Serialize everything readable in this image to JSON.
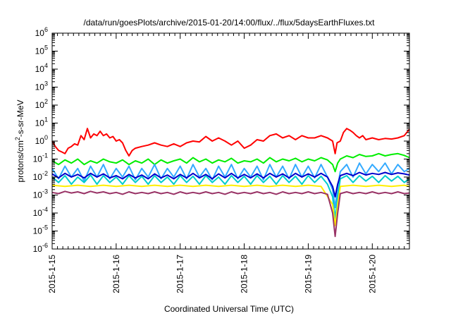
{
  "chart_data": {
    "type": "line",
    "title": "/data/run/goesPlots/archive/2015-01-20/14:00/flux/../flux/5daysEarthFluxes.txt",
    "xlabel": "Coordinated Universal Time (UTC)",
    "ylabel": "protons/cm²-s-sr-MeV",
    "ylabel_parts": [
      "protons/cm",
      "2",
      "-s-sr-MeV"
    ],
    "yscale": "log",
    "ylim": [
      1e-06,
      1000000.0
    ],
    "xlim": [
      0,
      5.58
    ],
    "x_ticks": [
      {
        "x": 0,
        "label": "2015-1-15"
      },
      {
        "x": 1,
        "label": "2015-1-16"
      },
      {
        "x": 2,
        "label": "2015-1-17"
      },
      {
        "x": 3,
        "label": "2015-1-18"
      },
      {
        "x": 4,
        "label": "2015-1-19"
      },
      {
        "x": 5,
        "label": "2015-1-20"
      }
    ],
    "y_ticks": [
      {
        "exp": -6,
        "base": "10",
        "sup": "-6"
      },
      {
        "exp": -5,
        "base": "10",
        "sup": "-5"
      },
      {
        "exp": -4,
        "base": "10",
        "sup": "-4"
      },
      {
        "exp": -3,
        "base": "10",
        "sup": "-3"
      },
      {
        "exp": -2,
        "base": "10",
        "sup": "-2"
      },
      {
        "exp": -1,
        "base": "10",
        "sup": "-1"
      },
      {
        "exp": 0,
        "base": "10",
        "sup": "0"
      },
      {
        "exp": 1,
        "base": "10",
        "sup": "1"
      },
      {
        "exp": 2,
        "base": "10",
        "sup": "2"
      },
      {
        "exp": 3,
        "base": "10",
        "sup": "3"
      },
      {
        "exp": 4,
        "base": "10",
        "sup": "4"
      },
      {
        "exp": 5,
        "base": "10",
        "sup": "5"
      },
      {
        "exp": 6,
        "base": "10",
        "sup": "6"
      }
    ],
    "grid": false,
    "legend": "none",
    "series": [
      {
        "color": "#ff0000",
        "x": [
          0,
          0.05,
          0.1,
          0.15,
          0.2,
          0.25,
          0.3,
          0.35,
          0.4,
          0.45,
          0.5,
          0.55,
          0.6,
          0.65,
          0.7,
          0.75,
          0.8,
          0.85,
          0.9,
          0.95,
          1.0,
          1.05,
          1.1,
          1.15,
          1.2,
          1.25,
          1.3,
          1.4,
          1.5,
          1.6,
          1.7,
          1.8,
          1.9,
          2.0,
          2.1,
          2.2,
          2.3,
          2.4,
          2.5,
          2.6,
          2.7,
          2.8,
          2.9,
          3.0,
          3.1,
          3.2,
          3.3,
          3.4,
          3.5,
          3.6,
          3.7,
          3.8,
          3.9,
          4.0,
          4.1,
          4.2,
          4.3,
          4.38,
          4.42,
          4.45,
          4.5,
          4.55,
          4.6,
          4.65,
          4.7,
          4.75,
          4.8,
          4.85,
          4.9,
          5.0,
          5.1,
          5.2,
          5.3,
          5.4,
          5.5,
          5.58
        ],
        "y": [
          1.0,
          0.5,
          0.3,
          0.25,
          0.2,
          0.4,
          0.5,
          0.7,
          0.6,
          2.0,
          1.2,
          5.0,
          1.5,
          2.5,
          2.0,
          3.5,
          2.0,
          2.5,
          1.5,
          1.8,
          1.0,
          1.2,
          0.8,
          0.3,
          0.15,
          0.3,
          0.4,
          0.5,
          0.6,
          0.8,
          0.6,
          0.5,
          0.7,
          0.5,
          0.8,
          1.0,
          0.9,
          1.8,
          1.0,
          1.5,
          1.0,
          0.6,
          1.0,
          0.4,
          0.6,
          1.2,
          1.0,
          2.0,
          2.5,
          1.5,
          2.0,
          1.2,
          2.0,
          1.5,
          1.5,
          2.0,
          1.5,
          1.0,
          0.2,
          0.8,
          1.0,
          3.0,
          5.0,
          4.0,
          3.0,
          2.0,
          1.5,
          2.0,
          1.2,
          1.5,
          1.2,
          1.4,
          1.3,
          1.5,
          2.0,
          4.5
        ]
      },
      {
        "color": "#00ee00",
        "x": [
          0,
          0.1,
          0.2,
          0.3,
          0.4,
          0.5,
          0.6,
          0.7,
          0.8,
          0.9,
          1.0,
          1.1,
          1.2,
          1.3,
          1.4,
          1.5,
          1.6,
          1.7,
          1.8,
          1.9,
          2.0,
          2.1,
          2.2,
          2.3,
          2.4,
          2.5,
          2.6,
          2.7,
          2.8,
          2.9,
          3.0,
          3.1,
          3.2,
          3.3,
          3.4,
          3.5,
          3.6,
          3.7,
          3.8,
          3.9,
          4.0,
          4.1,
          4.2,
          4.3,
          4.38,
          4.42,
          4.46,
          4.5,
          4.6,
          4.7,
          4.8,
          4.9,
          5.0,
          5.1,
          5.2,
          5.3,
          5.4,
          5.5,
          5.58
        ],
        "y": [
          0.08,
          0.05,
          0.09,
          0.06,
          0.1,
          0.05,
          0.08,
          0.06,
          0.1,
          0.07,
          0.06,
          0.09,
          0.05,
          0.08,
          0.06,
          0.1,
          0.05,
          0.09,
          0.06,
          0.08,
          0.1,
          0.06,
          0.12,
          0.07,
          0.1,
          0.06,
          0.09,
          0.07,
          0.11,
          0.06,
          0.08,
          0.07,
          0.1,
          0.06,
          0.12,
          0.07,
          0.1,
          0.08,
          0.11,
          0.07,
          0.1,
          0.08,
          0.12,
          0.09,
          0.05,
          0.02,
          0.06,
          0.1,
          0.15,
          0.12,
          0.18,
          0.14,
          0.15,
          0.2,
          0.15,
          0.18,
          0.2,
          0.16,
          0.12
        ]
      },
      {
        "color": "#33aaff",
        "x": [
          0,
          0.1,
          0.2,
          0.3,
          0.4,
          0.5,
          0.6,
          0.7,
          0.8,
          0.9,
          1.0,
          1.1,
          1.2,
          1.3,
          1.4,
          1.5,
          1.6,
          1.7,
          1.8,
          1.9,
          2.0,
          2.1,
          2.2,
          2.3,
          2.4,
          2.5,
          2.6,
          2.7,
          2.8,
          2.9,
          3.0,
          3.1,
          3.2,
          3.3,
          3.4,
          3.5,
          3.6,
          3.7,
          3.8,
          3.9,
          4.0,
          4.1,
          4.2,
          4.3,
          4.38,
          4.42,
          4.46,
          4.5,
          4.6,
          4.7,
          4.8,
          4.9,
          5.0,
          5.1,
          5.2,
          5.3,
          5.4,
          5.5,
          5.58
        ],
        "y": [
          0.03,
          0.008,
          0.04,
          0.01,
          0.03,
          0.006,
          0.04,
          0.01,
          0.05,
          0.008,
          0.03,
          0.01,
          0.04,
          0.007,
          0.03,
          0.01,
          0.05,
          0.008,
          0.03,
          0.01,
          0.04,
          0.008,
          0.05,
          0.01,
          0.03,
          0.007,
          0.04,
          0.01,
          0.05,
          0.008,
          0.03,
          0.01,
          0.04,
          0.007,
          0.05,
          0.01,
          0.04,
          0.008,
          0.05,
          0.01,
          0.04,
          0.009,
          0.05,
          0.01,
          0.002,
          0.0002,
          0.003,
          0.02,
          0.05,
          0.01,
          0.06,
          0.015,
          0.05,
          0.02,
          0.06,
          0.015,
          0.05,
          0.02,
          0.03
        ]
      },
      {
        "color": "#00cccc",
        "x": [
          0,
          0.1,
          0.2,
          0.3,
          0.4,
          0.5,
          0.6,
          0.7,
          0.8,
          0.9,
          1.0,
          1.1,
          1.2,
          1.3,
          1.4,
          1.5,
          1.6,
          1.7,
          1.8,
          1.9,
          2.0,
          2.1,
          2.2,
          2.3,
          2.4,
          2.5,
          2.6,
          2.7,
          2.8,
          2.9,
          3.0,
          3.1,
          3.2,
          3.3,
          3.4,
          3.5,
          3.6,
          3.7,
          3.8,
          3.9,
          4.0,
          4.1,
          4.2,
          4.3,
          4.38,
          4.42,
          4.46,
          4.5,
          4.6,
          4.7,
          4.8,
          4.9,
          5.0,
          5.1,
          5.2,
          5.3,
          5.4,
          5.5,
          5.58
        ],
        "y": [
          0.01,
          0.005,
          0.012,
          0.004,
          0.01,
          0.005,
          0.013,
          0.004,
          0.012,
          0.005,
          0.01,
          0.004,
          0.012,
          0.005,
          0.011,
          0.004,
          0.012,
          0.005,
          0.01,
          0.004,
          0.012,
          0.005,
          0.011,
          0.004,
          0.012,
          0.005,
          0.01,
          0.004,
          0.012,
          0.005,
          0.011,
          0.004,
          0.012,
          0.005,
          0.011,
          0.004,
          0.012,
          0.005,
          0.011,
          0.004,
          0.012,
          0.005,
          0.011,
          0.004,
          0.0008,
          5e-05,
          0.0008,
          0.008,
          0.012,
          0.005,
          0.012,
          0.006,
          0.011,
          0.005,
          0.012,
          0.006,
          0.011,
          0.005,
          0.008
        ]
      },
      {
        "color": "#0000cc",
        "x": [
          0,
          0.1,
          0.2,
          0.3,
          0.4,
          0.5,
          0.6,
          0.7,
          0.8,
          0.9,
          1.0,
          1.1,
          1.2,
          1.3,
          1.4,
          1.5,
          1.6,
          1.7,
          1.8,
          1.9,
          2.0,
          2.1,
          2.2,
          2.3,
          2.4,
          2.5,
          2.6,
          2.7,
          2.8,
          2.9,
          3.0,
          3.1,
          3.2,
          3.3,
          3.4,
          3.5,
          3.6,
          3.7,
          3.8,
          3.9,
          4.0,
          4.1,
          4.2,
          4.3,
          4.38,
          4.42,
          4.46,
          4.5,
          4.6,
          4.7,
          4.8,
          4.9,
          5.0,
          5.1,
          5.2,
          5.3,
          5.4,
          5.5,
          5.58
        ],
        "y": [
          0.015,
          0.009,
          0.016,
          0.01,
          0.014,
          0.009,
          0.016,
          0.01,
          0.015,
          0.009,
          0.012,
          0.008,
          0.014,
          0.009,
          0.013,
          0.008,
          0.015,
          0.009,
          0.013,
          0.008,
          0.014,
          0.009,
          0.016,
          0.009,
          0.014,
          0.008,
          0.015,
          0.009,
          0.016,
          0.009,
          0.014,
          0.009,
          0.015,
          0.009,
          0.016,
          0.01,
          0.015,
          0.009,
          0.016,
          0.01,
          0.015,
          0.01,
          0.016,
          0.01,
          0.003,
          0.0008,
          0.004,
          0.012,
          0.016,
          0.012,
          0.018,
          0.013,
          0.016,
          0.014,
          0.018,
          0.014,
          0.017,
          0.015,
          0.013
        ]
      },
      {
        "color": "#ffee00",
        "x": [
          0,
          0.2,
          0.4,
          0.6,
          0.8,
          1.0,
          1.2,
          1.4,
          1.6,
          1.8,
          2.0,
          2.2,
          2.4,
          2.6,
          2.8,
          3.0,
          3.2,
          3.4,
          3.6,
          3.8,
          4.0,
          4.2,
          4.38,
          4.42,
          4.46,
          4.5,
          4.7,
          4.9,
          5.1,
          5.3,
          5.5,
          5.58
        ],
        "y": [
          0.0035,
          0.003,
          0.0035,
          0.003,
          0.0035,
          0.003,
          0.0035,
          0.003,
          0.0035,
          0.003,
          0.0035,
          0.003,
          0.0035,
          0.003,
          0.0035,
          0.003,
          0.0035,
          0.003,
          0.0035,
          0.003,
          0.0035,
          0.003,
          0.0003,
          2e-05,
          0.0003,
          0.003,
          0.0035,
          0.003,
          0.0035,
          0.003,
          0.0035,
          0.003
        ]
      },
      {
        "color": "#993366",
        "x": [
          0,
          0.1,
          0.2,
          0.3,
          0.4,
          0.5,
          0.6,
          0.7,
          0.8,
          0.9,
          1.0,
          1.1,
          1.2,
          1.3,
          1.4,
          1.5,
          1.6,
          1.7,
          1.8,
          1.9,
          2.0,
          2.1,
          2.2,
          2.3,
          2.4,
          2.5,
          2.6,
          2.7,
          2.8,
          2.9,
          3.0,
          3.1,
          3.2,
          3.3,
          3.4,
          3.5,
          3.6,
          3.7,
          3.8,
          3.9,
          4.0,
          4.1,
          4.2,
          4.3,
          4.38,
          4.42,
          4.46,
          4.5,
          4.6,
          4.7,
          4.8,
          4.9,
          5.0,
          5.1,
          5.2,
          5.3,
          5.4,
          5.5,
          5.58
        ],
        "y": [
          0.0014,
          0.0012,
          0.0016,
          0.0013,
          0.0015,
          0.0012,
          0.0016,
          0.0013,
          0.0015,
          0.0012,
          0.0014,
          0.0011,
          0.0015,
          0.0012,
          0.0014,
          0.0012,
          0.0015,
          0.0012,
          0.0014,
          0.0011,
          0.0015,
          0.0012,
          0.0014,
          0.0012,
          0.0015,
          0.0012,
          0.0014,
          0.0011,
          0.0015,
          0.0012,
          0.0014,
          0.0012,
          0.0015,
          0.0012,
          0.0014,
          0.0011,
          0.0015,
          0.0012,
          0.0014,
          0.0012,
          0.0015,
          0.0012,
          0.0014,
          0.0011,
          0.0001,
          5e-06,
          0.0001,
          0.0012,
          0.0015,
          0.0012,
          0.0014,
          0.0012,
          0.0015,
          0.0012,
          0.0014,
          0.0012,
          0.0015,
          0.0012,
          0.0013
        ]
      }
    ]
  }
}
